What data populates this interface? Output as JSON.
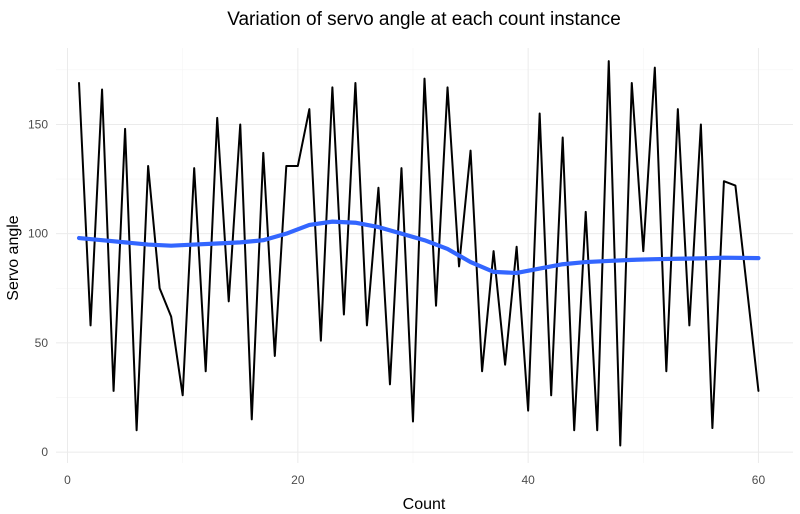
{
  "chart_data": {
    "type": "line",
    "title": "Variation of servo angle at each count instance",
    "xlabel": "Count",
    "ylabel": "Servo angle",
    "xlim": [
      -1,
      63
    ],
    "ylim": [
      -5,
      185
    ],
    "x_ticks": [
      0,
      20,
      40,
      60
    ],
    "y_ticks": [
      0,
      50,
      100,
      150
    ],
    "grid": true,
    "legend": "none",
    "series": [
      {
        "color": "#000000",
        "x": [
          1,
          2,
          3,
          4,
          5,
          6,
          7,
          8,
          9,
          10,
          11,
          12,
          13,
          14,
          15,
          16,
          17,
          18,
          19,
          20,
          21,
          22,
          23,
          24,
          25,
          26,
          27,
          28,
          29,
          30,
          31,
          32,
          33,
          34,
          35,
          36,
          37,
          38,
          39,
          40,
          41,
          42,
          43,
          44,
          45,
          46,
          47,
          48,
          49,
          50,
          51,
          52,
          53,
          54,
          55,
          56,
          57,
          58,
          59,
          60
        ],
        "y": [
          169,
          58,
          166,
          28,
          148,
          10,
          131,
          75,
          62,
          26,
          130,
          37,
          153,
          69,
          150,
          15,
          137,
          44,
          131,
          131,
          157,
          51,
          167,
          63,
          169,
          58,
          121,
          31,
          130,
          14,
          171,
          67,
          167,
          85,
          138,
          37,
          92,
          40,
          94,
          19,
          155,
          26,
          144,
          10,
          110,
          10,
          179,
          3,
          169,
          92,
          176,
          37,
          157,
          58,
          150,
          11,
          124,
          122,
          75,
          28
        ]
      },
      {
        "color": "#3366ff",
        "x": [
          1,
          3,
          5,
          7,
          9,
          11,
          13,
          15,
          17,
          19,
          21,
          23,
          25,
          27,
          29,
          31,
          33,
          35,
          37,
          39,
          41,
          43,
          45,
          47,
          49,
          51,
          53,
          55,
          57,
          60
        ],
        "y": [
          98,
          97,
          96,
          95,
          94.5,
          95,
          95.5,
          96,
          97,
          100,
          104,
          105.5,
          105,
          103,
          100,
          97,
          93,
          87,
          82.5,
          82,
          84,
          86,
          87,
          87.5,
          88,
          88.3,
          88.5,
          88.7,
          89,
          88.8
        ]
      }
    ]
  }
}
